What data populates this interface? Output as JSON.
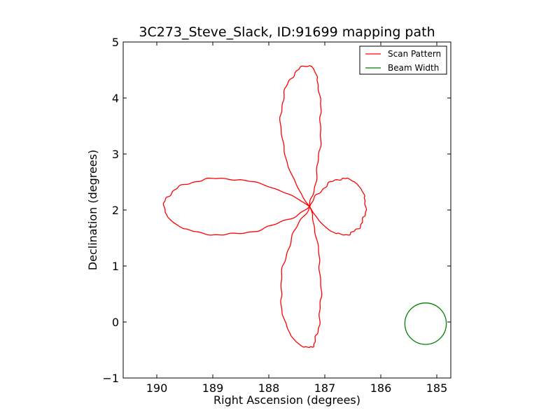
{
  "chart_data": {
    "type": "line",
    "title": "3C273_Steve_Slack, ID:91699 mapping path",
    "xlabel": "Right Ascension (degrees)",
    "ylabel": "Declination (degrees)",
    "xlim": [
      190.6,
      184.75
    ],
    "ylim": [
      -1,
      5
    ],
    "xticks": [
      190,
      189,
      188,
      187,
      186,
      185
    ],
    "yticks": [
      -1,
      0,
      1,
      2,
      3,
      4,
      5
    ],
    "xtick_labels": [
      "190",
      "189",
      "188",
      "187",
      "186",
      "185"
    ],
    "ytick_labels": [
      "−1",
      "0",
      "1",
      "2",
      "3",
      "4",
      "5"
    ],
    "grid": false,
    "legend": {
      "placement": "top-right",
      "entries": [
        {
          "label": "Scan Pattern",
          "color": "#ff0000"
        },
        {
          "label": "Beam Width",
          "color": "#008000"
        }
      ]
    },
    "series": [
      {
        "name": "Scan Pattern",
        "color": "#ff0000",
        "kind": "four-leaf rose scan",
        "center": [
          187.27,
          2.06
        ],
        "lobe_extent_ra": 2.6,
        "lobe_extent_dec": 2.52,
        "lobe_halfwidth_ra": 0.72,
        "lobe_halfwidth_dec": 0.7,
        "start_point": [
          189.85,
          2.05
        ]
      },
      {
        "name": "Beam Width",
        "color": "#008000",
        "kind": "circle",
        "center": [
          185.2,
          -0.03
        ],
        "radius_dec": 0.37
      }
    ]
  }
}
